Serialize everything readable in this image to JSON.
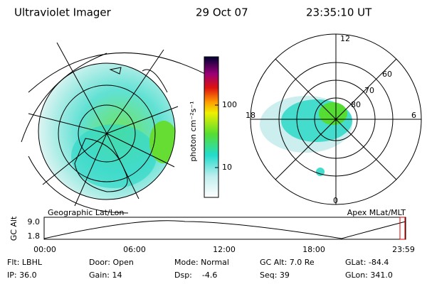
{
  "header": {
    "instrument": "Ultraviolet Imager",
    "date": "29 Oct 07",
    "time": "23:35:10 UT"
  },
  "colorbar": {
    "label": "photon cm⁻²s⁻¹",
    "ticks": [
      {
        "value": 100,
        "label": "100"
      },
      {
        "value": 10,
        "label": "10"
      }
    ]
  },
  "polar": {
    "top": "12",
    "bottom": "0",
    "left": "18",
    "right": "6",
    "rings": [
      "60",
      "70",
      "80"
    ]
  },
  "altitude": {
    "label": "GC Alt",
    "yticks": [
      {
        "value": 9,
        "label": "9.0"
      },
      {
        "value": 1.8,
        "label": "1.8"
      }
    ],
    "xticks": [
      "00:00",
      "06:00",
      "12:00",
      "18:00",
      "23:59"
    ],
    "left_caption": "Geographic Lat/Lon",
    "right_caption": "Apex MLat/MLT"
  },
  "footer": {
    "rows": [
      [
        "Flt: LBHL",
        "Door: Open",
        "Mode: Normal",
        "GC Alt: 7.0 Re",
        "GLat: -84.4"
      ],
      [
        "IP: 36.0",
        "Gain: 14",
        "Dsp:    -4.6",
        "Seq: 39",
        "GLon: 341.0"
      ]
    ]
  }
}
